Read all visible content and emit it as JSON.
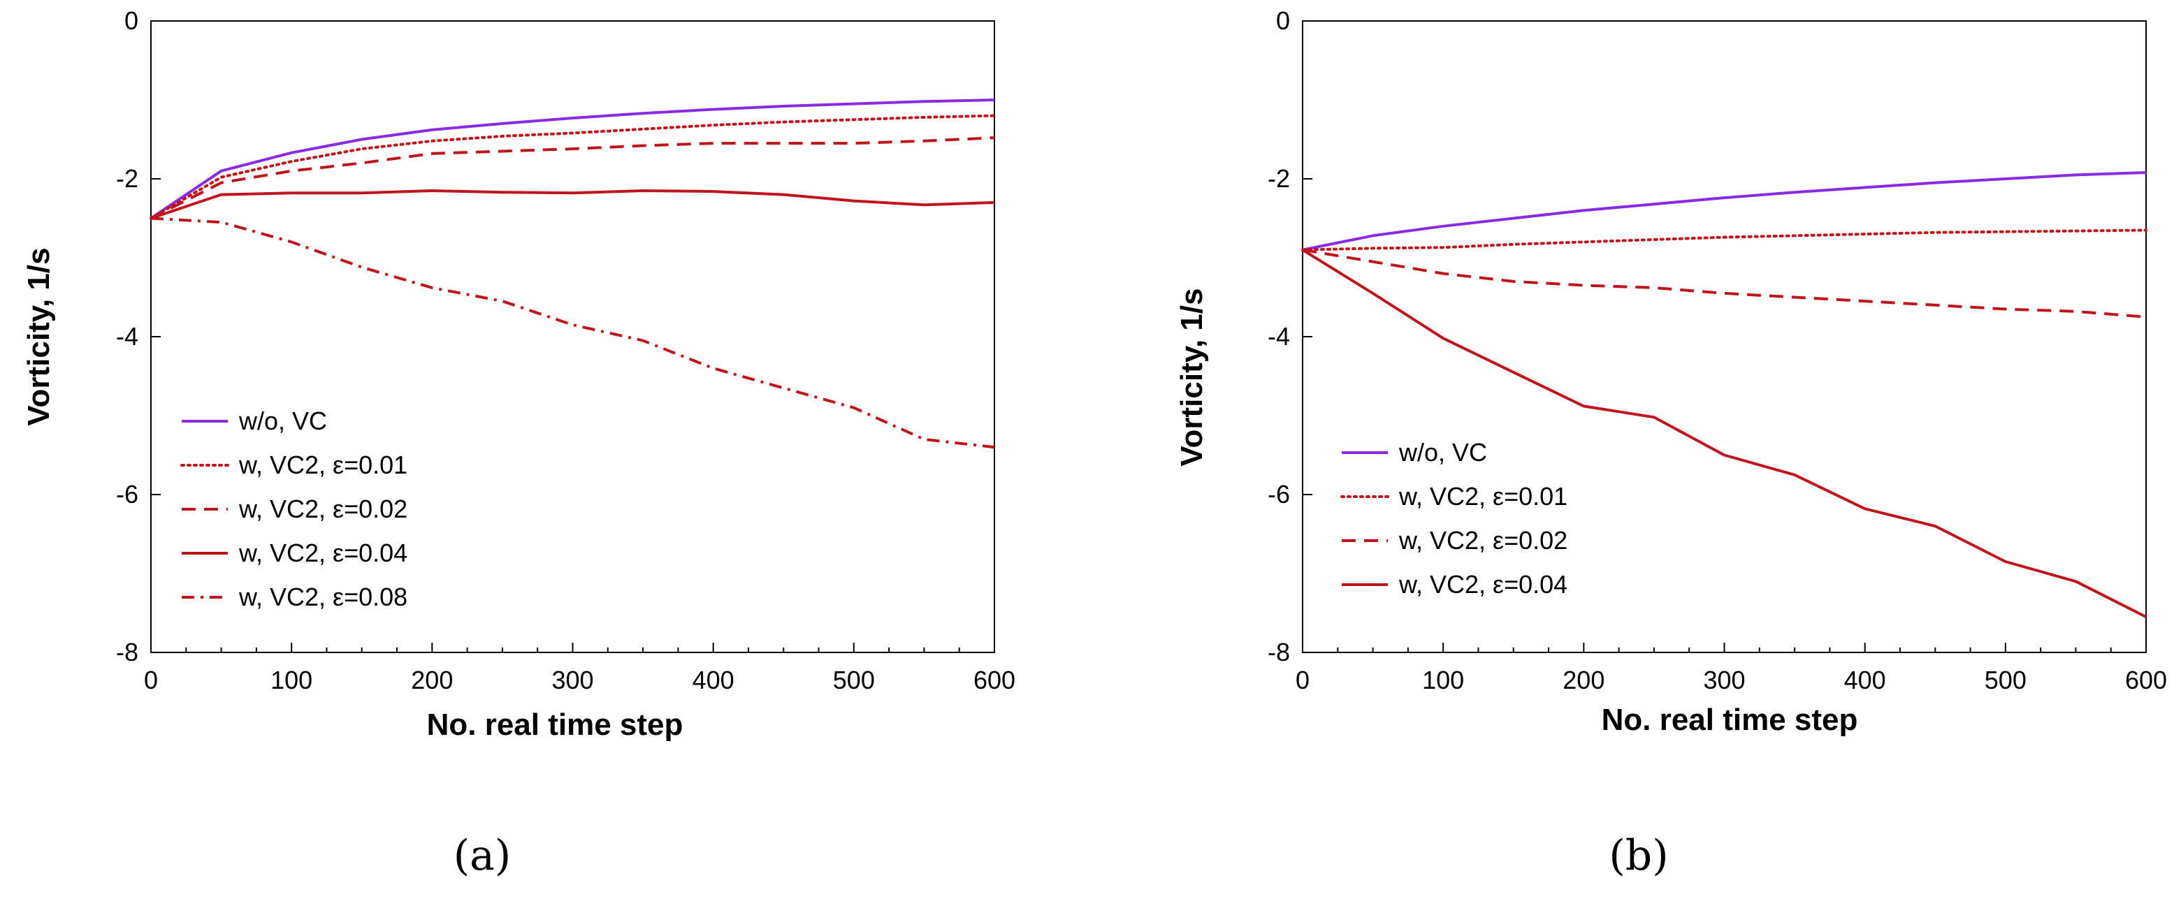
{
  "colors": {
    "purple": "#8a2be2",
    "red": "#c0141c"
  },
  "chart_data": [
    {
      "type": "line",
      "panel_label": "(a)",
      "xlabel": "No. real time step",
      "ylabel": "Vorticity, 1/s",
      "xlim": [
        0,
        600
      ],
      "ylim": [
        -8,
        0
      ],
      "xticks": [
        "0",
        "100",
        "200",
        "300",
        "400",
        "500",
        "600"
      ],
      "yticks": [
        "0",
        "-2",
        "-4",
        "-6",
        "-8"
      ],
      "legend_position": "lower-left",
      "series": [
        {
          "name": "w/o, VC",
          "style": "solid",
          "color": "purple",
          "x": [
            0,
            50,
            100,
            150,
            200,
            250,
            300,
            350,
            400,
            450,
            500,
            550,
            600
          ],
          "y": [
            -2.5,
            -1.9,
            -1.67,
            -1.5,
            -1.38,
            -1.3,
            -1.23,
            -1.17,
            -1.12,
            -1.08,
            -1.05,
            -1.02,
            -1.0
          ]
        },
        {
          "name": "w, VC2, ε=0.01",
          "style": "dotted",
          "color": "red",
          "x": [
            0,
            50,
            100,
            150,
            200,
            250,
            300,
            350,
            400,
            450,
            500,
            550,
            600
          ],
          "y": [
            -2.5,
            -1.98,
            -1.78,
            -1.62,
            -1.52,
            -1.46,
            -1.42,
            -1.37,
            -1.32,
            -1.28,
            -1.25,
            -1.22,
            -1.2
          ]
        },
        {
          "name": "w, VC2, ε=0.02",
          "style": "dashed",
          "color": "red",
          "x": [
            0,
            50,
            100,
            150,
            200,
            250,
            300,
            350,
            400,
            450,
            500,
            550,
            600
          ],
          "y": [
            -2.5,
            -2.05,
            -1.9,
            -1.8,
            -1.68,
            -1.65,
            -1.62,
            -1.58,
            -1.55,
            -1.55,
            -1.55,
            -1.52,
            -1.48
          ]
        },
        {
          "name": "w, VC2, ε=0.04",
          "style": "solid",
          "color": "red",
          "x": [
            0,
            50,
            100,
            150,
            200,
            250,
            300,
            350,
            400,
            450,
            500,
            550,
            600
          ],
          "y": [
            -2.5,
            -2.2,
            -2.18,
            -2.18,
            -2.15,
            -2.17,
            -2.18,
            -2.15,
            -2.16,
            -2.2,
            -2.28,
            -2.33,
            -2.3
          ]
        },
        {
          "name": "w, VC2, ε=0.08",
          "style": "dashdot",
          "color": "red",
          "x": [
            0,
            50,
            100,
            150,
            200,
            250,
            300,
            350,
            400,
            450,
            500,
            550,
            600
          ],
          "y": [
            -2.5,
            -2.55,
            -2.8,
            -3.12,
            -3.38,
            -3.55,
            -3.85,
            -4.05,
            -4.4,
            -4.65,
            -4.9,
            -5.3,
            -5.4
          ]
        }
      ]
    },
    {
      "type": "line",
      "panel_label": "(b)",
      "xlabel": "No. real time step",
      "ylabel": "Vorticity, 1/s",
      "xlim": [
        0,
        600
      ],
      "ylim": [
        -8,
        0
      ],
      "xticks": [
        "0",
        "100",
        "200",
        "300",
        "400",
        "500",
        "600"
      ],
      "yticks": [
        "0",
        "-2",
        "-4",
        "-6",
        "-8"
      ],
      "legend_position": "lower-left",
      "series": [
        {
          "name": "w/o, VC",
          "style": "solid",
          "color": "purple",
          "x": [
            0,
            50,
            100,
            150,
            200,
            250,
            300,
            350,
            400,
            450,
            500,
            550,
            600
          ],
          "y": [
            -2.9,
            -2.72,
            -2.6,
            -2.5,
            -2.4,
            -2.32,
            -2.24,
            -2.17,
            -2.11,
            -2.05,
            -2.0,
            -1.95,
            -1.92
          ]
        },
        {
          "name": "w, VC2, ε=0.01",
          "style": "dotted",
          "color": "red",
          "x": [
            0,
            50,
            100,
            150,
            200,
            250,
            300,
            350,
            400,
            450,
            500,
            550,
            600
          ],
          "y": [
            -2.9,
            -2.88,
            -2.87,
            -2.83,
            -2.8,
            -2.77,
            -2.74,
            -2.72,
            -2.7,
            -2.68,
            -2.67,
            -2.66,
            -2.65
          ]
        },
        {
          "name": "w, VC2, ε=0.02",
          "style": "dashed",
          "color": "red",
          "x": [
            0,
            50,
            100,
            150,
            200,
            250,
            300,
            350,
            400,
            450,
            500,
            550,
            600
          ],
          "y": [
            -2.9,
            -3.05,
            -3.2,
            -3.3,
            -3.35,
            -3.38,
            -3.45,
            -3.5,
            -3.55,
            -3.6,
            -3.65,
            -3.68,
            -3.75
          ]
        },
        {
          "name": "w, VC2, ε=0.04",
          "style": "solid",
          "color": "red",
          "x": [
            0,
            50,
            100,
            150,
            200,
            250,
            300,
            350,
            400,
            450,
            500,
            550,
            600
          ],
          "y": [
            -2.9,
            -3.45,
            -4.02,
            -4.45,
            -4.88,
            -5.02,
            -5.5,
            -5.75,
            -6.18,
            -6.4,
            -6.85,
            -7.1,
            -7.55
          ]
        }
      ]
    }
  ]
}
